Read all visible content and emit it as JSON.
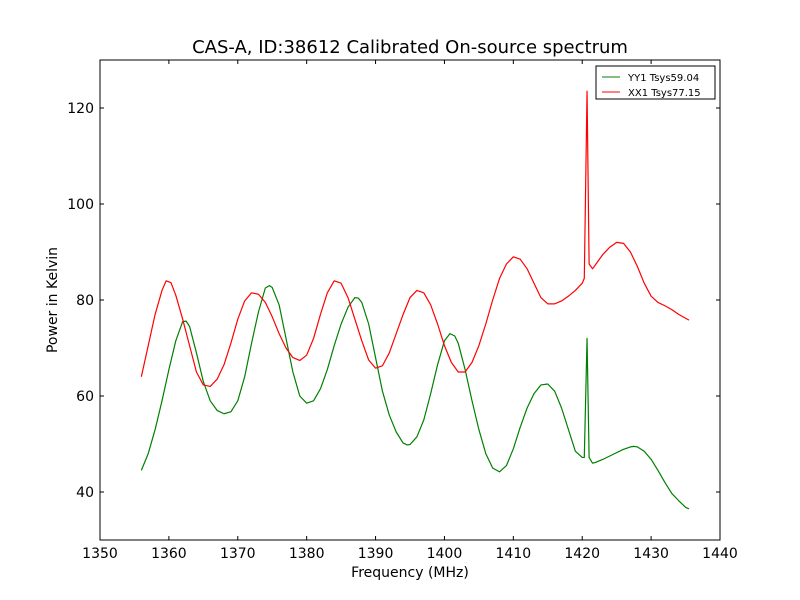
{
  "chart_data": {
    "type": "line",
    "title": "CAS-A, ID:38612 Calibrated On-source spectrum",
    "xlabel": "Frequency (MHz)",
    "ylabel": "Power in Kelvin",
    "xlim": [
      1350,
      1440
    ],
    "ylim": [
      30,
      130
    ],
    "xticks": [
      1350,
      1360,
      1370,
      1380,
      1390,
      1400,
      1410,
      1420,
      1430,
      1440
    ],
    "yticks": [
      40,
      60,
      80,
      100,
      120
    ],
    "grid": false,
    "legend_position": "top-right",
    "series": [
      {
        "name": "YY1 Tsys59.04",
        "color": "#008000",
        "points": [
          [
            1356,
            44.5
          ],
          [
            1357,
            48
          ],
          [
            1358,
            53
          ],
          [
            1359,
            59
          ],
          [
            1360,
            65.5
          ],
          [
            1361,
            71.5
          ],
          [
            1362,
            75.5
          ],
          [
            1362.5,
            75.6
          ],
          [
            1363,
            74.5
          ],
          [
            1364,
            69
          ],
          [
            1365,
            63
          ],
          [
            1366,
            59
          ],
          [
            1367,
            57
          ],
          [
            1368,
            56.3
          ],
          [
            1369,
            56.7
          ],
          [
            1370,
            59
          ],
          [
            1371,
            64
          ],
          [
            1372,
            71
          ],
          [
            1373,
            77.5
          ],
          [
            1374,
            82.5
          ],
          [
            1374.6,
            83
          ],
          [
            1375,
            82.6
          ],
          [
            1376,
            79
          ],
          [
            1377,
            72
          ],
          [
            1378,
            65
          ],
          [
            1379,
            60
          ],
          [
            1380,
            58.5
          ],
          [
            1381,
            59
          ],
          [
            1382,
            61.5
          ],
          [
            1383,
            65.5
          ],
          [
            1384,
            70.5
          ],
          [
            1385,
            75
          ],
          [
            1386,
            78.5
          ],
          [
            1387,
            80.5
          ],
          [
            1387.5,
            80.4
          ],
          [
            1388,
            79.5
          ],
          [
            1389,
            75
          ],
          [
            1390,
            68
          ],
          [
            1391,
            61
          ],
          [
            1392,
            56
          ],
          [
            1393,
            52.5
          ],
          [
            1394,
            50.2
          ],
          [
            1394.6,
            49.8
          ],
          [
            1395,
            49.9
          ],
          [
            1396,
            51.5
          ],
          [
            1397,
            55
          ],
          [
            1398,
            60.5
          ],
          [
            1399,
            66.5
          ],
          [
            1400,
            71.5
          ],
          [
            1400.8,
            73
          ],
          [
            1401.5,
            72.5
          ],
          [
            1402,
            71
          ],
          [
            1403,
            65.5
          ],
          [
            1404,
            59
          ],
          [
            1405,
            53
          ],
          [
            1406,
            48
          ],
          [
            1407,
            45
          ],
          [
            1408,
            44.2
          ],
          [
            1409,
            45.5
          ],
          [
            1410,
            49
          ],
          [
            1411,
            53.5
          ],
          [
            1412,
            57.5
          ],
          [
            1413,
            60.5
          ],
          [
            1414,
            62.3
          ],
          [
            1415,
            62.5
          ],
          [
            1416,
            61
          ],
          [
            1417,
            57.5
          ],
          [
            1418,
            53
          ],
          [
            1419,
            48.5
          ],
          [
            1420,
            47.2
          ],
          [
            1420.3,
            47.2
          ],
          [
            1420.7,
            72
          ],
          [
            1421,
            47.2
          ],
          [
            1421.5,
            46
          ],
          [
            1422,
            46.2
          ],
          [
            1423,
            46.8
          ],
          [
            1424,
            47.5
          ],
          [
            1425,
            48.2
          ],
          [
            1426,
            48.9
          ],
          [
            1427,
            49.4
          ],
          [
            1427.5,
            49.5
          ],
          [
            1428,
            49.4
          ],
          [
            1429,
            48.5
          ],
          [
            1430,
            46.8
          ],
          [
            1431,
            44.5
          ],
          [
            1432,
            42
          ],
          [
            1433,
            39.7
          ],
          [
            1434,
            38.2
          ],
          [
            1435,
            36.8
          ],
          [
            1435.5,
            36.5
          ]
        ]
      },
      {
        "name": "XX1 Tsys77.15",
        "color": "#ff0000",
        "points": [
          [
            1356,
            64
          ],
          [
            1357,
            70.5
          ],
          [
            1358,
            77
          ],
          [
            1359,
            82
          ],
          [
            1359.6,
            84
          ],
          [
            1360.3,
            83.6
          ],
          [
            1361,
            81
          ],
          [
            1362,
            76
          ],
          [
            1363,
            70.5
          ],
          [
            1364,
            65
          ],
          [
            1365,
            62.3
          ],
          [
            1366,
            62
          ],
          [
            1367,
            63.5
          ],
          [
            1368,
            66.5
          ],
          [
            1369,
            71
          ],
          [
            1370,
            76
          ],
          [
            1371,
            79.8
          ],
          [
            1372,
            81.5
          ],
          [
            1373,
            81.2
          ],
          [
            1374,
            79.5
          ],
          [
            1375,
            76.5
          ],
          [
            1376,
            73
          ],
          [
            1377,
            70
          ],
          [
            1378,
            68
          ],
          [
            1379,
            67.4
          ],
          [
            1380,
            68.5
          ],
          [
            1381,
            72
          ],
          [
            1382,
            77
          ],
          [
            1383,
            81.5
          ],
          [
            1384,
            84
          ],
          [
            1385,
            83.5
          ],
          [
            1386,
            80.5
          ],
          [
            1387,
            76
          ],
          [
            1388,
            71.5
          ],
          [
            1389,
            67.5
          ],
          [
            1390,
            65.8
          ],
          [
            1391,
            66.3
          ],
          [
            1392,
            69
          ],
          [
            1393,
            73
          ],
          [
            1394,
            77
          ],
          [
            1395,
            80.5
          ],
          [
            1396,
            82
          ],
          [
            1397,
            81.5
          ],
          [
            1398,
            79
          ],
          [
            1399,
            75
          ],
          [
            1400,
            70.5
          ],
          [
            1401,
            67
          ],
          [
            1402,
            65
          ],
          [
            1403,
            65
          ],
          [
            1404,
            67
          ],
          [
            1405,
            70.5
          ],
          [
            1406,
            75
          ],
          [
            1407,
            80
          ],
          [
            1408,
            84.5
          ],
          [
            1409,
            87.5
          ],
          [
            1410,
            89
          ],
          [
            1411,
            88.5
          ],
          [
            1412,
            86.5
          ],
          [
            1413,
            83.5
          ],
          [
            1414,
            80.5
          ],
          [
            1415,
            79.2
          ],
          [
            1416,
            79.2
          ],
          [
            1417,
            79.8
          ],
          [
            1418,
            80.8
          ],
          [
            1419,
            82
          ],
          [
            1420,
            83.5
          ],
          [
            1420.3,
            84.5
          ],
          [
            1420.7,
            123.5
          ],
          [
            1421,
            87.5
          ],
          [
            1421.5,
            86.5
          ],
          [
            1422,
            87.5
          ],
          [
            1423,
            89.5
          ],
          [
            1424,
            91
          ],
          [
            1425,
            92
          ],
          [
            1426,
            91.8
          ],
          [
            1427,
            90
          ],
          [
            1428,
            87
          ],
          [
            1429,
            83.5
          ],
          [
            1430,
            80.8
          ],
          [
            1431,
            79.5
          ],
          [
            1432,
            78.8
          ],
          [
            1433,
            78
          ],
          [
            1434,
            77
          ],
          [
            1435,
            76.2
          ],
          [
            1435.5,
            75.8
          ]
        ]
      }
    ]
  }
}
